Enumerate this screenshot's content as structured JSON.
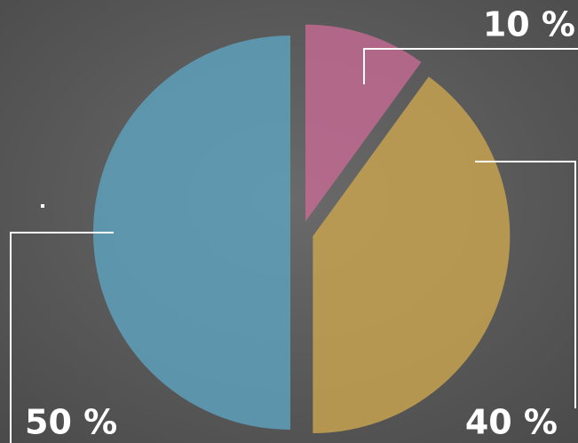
{
  "chart_data": {
    "type": "pie",
    "values": [
      10,
      40,
      50
    ],
    "value_labels": [
      "10 %",
      "40 %",
      "50 %"
    ],
    "colors": [
      "#c56a93",
      "#c9a54f",
      "#5ea2bf"
    ]
  }
}
